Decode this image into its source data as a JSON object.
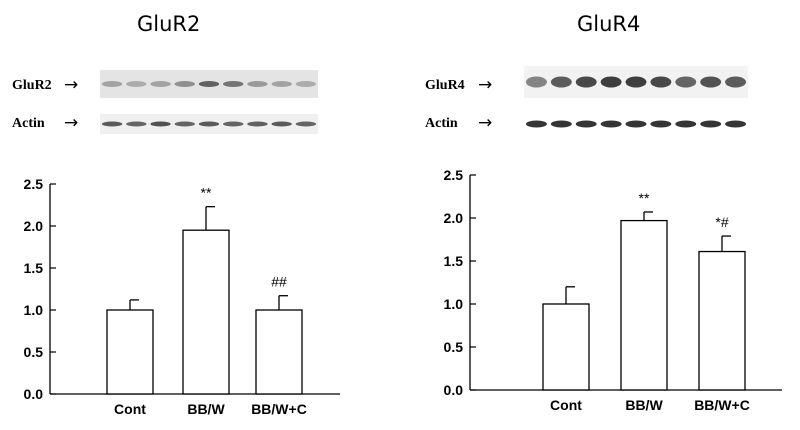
{
  "panels": [
    {
      "title": "GluR2",
      "blot_target_label": "GluR2",
      "blot_actin_label": "Actin"
    },
    {
      "title": "GluR4",
      "blot_target_label": "GluR4",
      "blot_actin_label": "Actin"
    }
  ],
  "arrow_symbol": "→",
  "colors": {
    "bar_fill": "#ffffff",
    "stroke": "#000000",
    "blot_band": "#2a2a2a"
  },
  "chart_data": [
    {
      "type": "bar",
      "categories": [
        "Cont",
        "BB/W",
        "BB/W+C"
      ],
      "values": [
        1.0,
        1.95,
        1.0
      ],
      "errors": [
        0.12,
        0.28,
        0.17
      ],
      "annotations": [
        "",
        "**",
        "##"
      ],
      "ylim": [
        0,
        2.5
      ],
      "yticks": [
        "0.0",
        "0.5",
        "1.0",
        "1.5",
        "2.0",
        "2.5"
      ],
      "grid": false
    },
    {
      "type": "bar",
      "categories": [
        "Cont",
        "BB/W",
        "BB/W+C"
      ],
      "values": [
        1.0,
        1.97,
        1.61
      ],
      "errors": [
        0.2,
        0.1,
        0.18
      ],
      "annotations": [
        "",
        "**",
        "*#"
      ],
      "ylim": [
        0,
        2.5
      ],
      "yticks": [
        "0.0",
        "0.5",
        "1.0",
        "1.5",
        "2.0",
        "2.5"
      ],
      "grid": false
    }
  ]
}
